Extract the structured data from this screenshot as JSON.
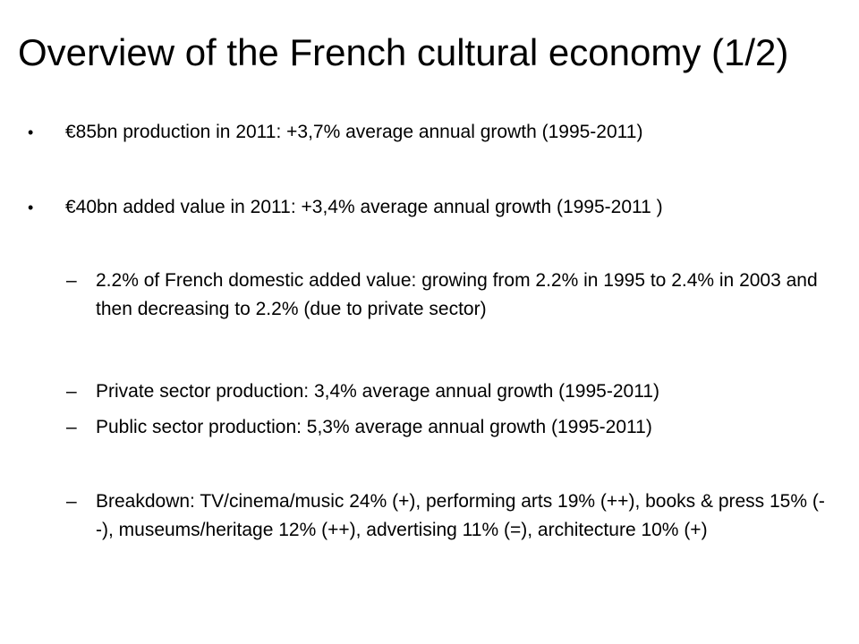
{
  "slide": {
    "title": "Overview of the French cultural economy (1/2)",
    "bullet_marker": "•",
    "dash_marker": "–",
    "bullets": [
      {
        "level": 1,
        "text": "€85bn production in 2011: +3,7% average annual growth  (1995-2011)"
      },
      {
        "level": 1,
        "text": "€40bn added value in 2011: +3,4% average annual growth (1995-2011 )"
      },
      {
        "level": 2,
        "text": "2.2% of French domestic added value: growing from 2.2% in 1995 to 2.4% in 2003 and then decreasing to 2.2% (due to private sector)"
      },
      {
        "level": 2,
        "text": "Private sector production: 3,4% average annual growth (1995-2011)"
      },
      {
        "level": 2,
        "text": "Public sector production: 5,3% average annual growth (1995-2011)"
      },
      {
        "level": 2,
        "text": "Breakdown: TV/cinema/music 24% (+), performing arts 19% (++), books & press 15% (--), museums/heritage 12% (++), advertising 11% (=), architecture 10% (+)"
      }
    ]
  }
}
